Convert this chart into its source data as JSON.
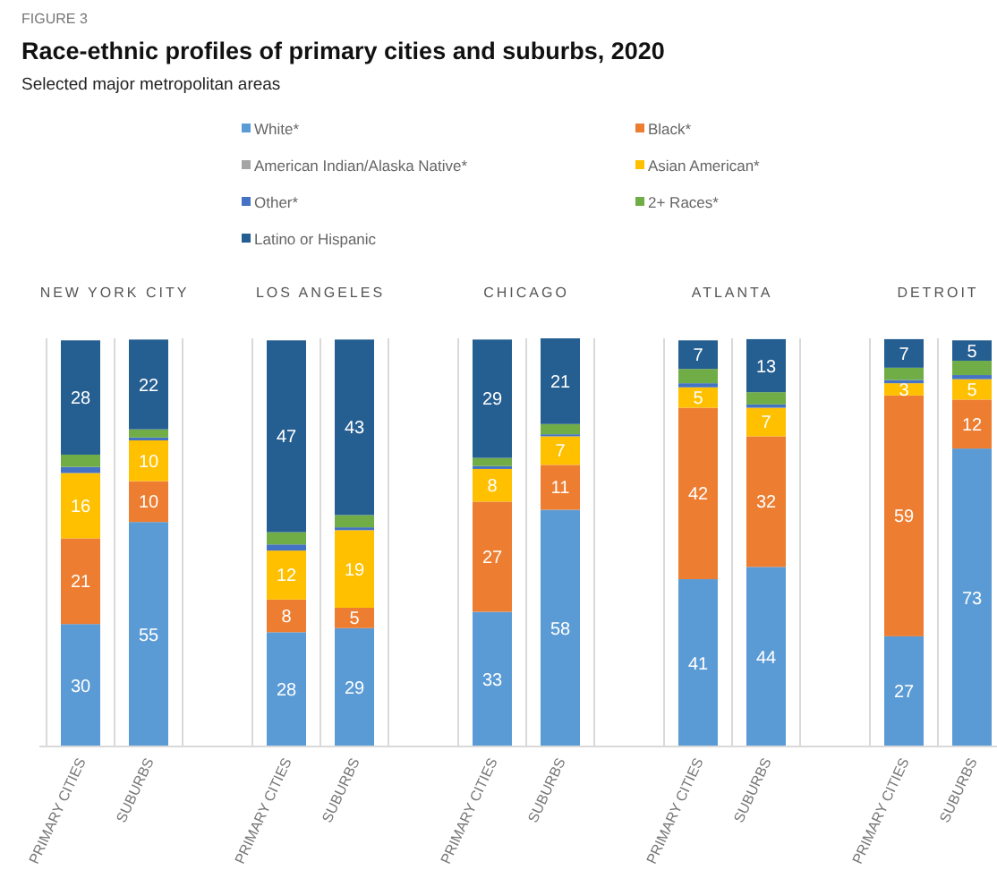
{
  "chart_data": {
    "type": "bar",
    "stacked": true,
    "title": "Race-ethnic profiles of primary cities and suburbs, 2020",
    "subtitle": "Selected major metropolitan areas",
    "annotations": [
      "FIGURE 3",
      "NEW YORK CITY",
      "LOS ANGELES",
      "CHICAGO",
      "ATLANTA",
      "DETROIT"
    ],
    "categories": [
      "PRIMARY CITIES",
      "SUBURBS",
      "PRIMARY CITIES",
      "SUBURBS",
      "PRIMARY CITIES",
      "SUBURBS",
      "PRIMARY CITIES",
      "SUBURBS",
      "PRIMARY CITIES",
      "SUBURBS"
    ],
    "series": [
      {
        "name": "White*",
        "color": "#5b9bd5",
        "values": [
          30,
          55,
          28,
          29,
          33,
          58,
          41,
          44,
          27,
          73
        ],
        "value_labels": [
          "30",
          "55",
          "28",
          "29",
          "33",
          "58",
          "41",
          "44",
          "27",
          "73"
        ]
      },
      {
        "name": "Black*",
        "color": "#ed7d31",
        "values": [
          21,
          10,
          8,
          5,
          27,
          11,
          42,
          32,
          59,
          12
        ],
        "value_labels": [
          "21",
          "10",
          "8",
          "5",
          "27",
          "11",
          "42",
          "32",
          "59",
          "12"
        ]
      },
      {
        "name": "American Indian/Alaska Native*",
        "color": "#a5a5a5",
        "values": [
          null,
          null,
          null,
          null,
          null,
          null,
          null,
          null,
          null,
          null
        ]
      },
      {
        "name": "Asian American*",
        "color": "#ffc000",
        "values": [
          16,
          10,
          12,
          19,
          8,
          7,
          5,
          7,
          3,
          5
        ],
        "value_labels": [
          "16",
          "10",
          "12",
          "19",
          "8",
          "7",
          "5",
          "7",
          "3",
          "5"
        ]
      },
      {
        "name": "Other*",
        "color": "#4472c4",
        "values": [
          1.5,
          0.7,
          1.5,
          0.7,
          0.7,
          0.5,
          1,
          0.8,
          0.8,
          1
        ]
      },
      {
        "name": "2+ Races*",
        "color": "#70ad47",
        "values": [
          3,
          2,
          3,
          3,
          2,
          2.5,
          3.5,
          3,
          3,
          3.5
        ]
      },
      {
        "name": "Latino or Hispanic",
        "color": "#255e91",
        "values": [
          28,
          22,
          47,
          43,
          29,
          21,
          7,
          13,
          7,
          5
        ],
        "value_labels": [
          "28",
          "22",
          "47",
          "43",
          "29",
          "21",
          "7",
          "13",
          "7",
          "5"
        ]
      }
    ],
    "grid": "x",
    "legend": "top"
  }
}
